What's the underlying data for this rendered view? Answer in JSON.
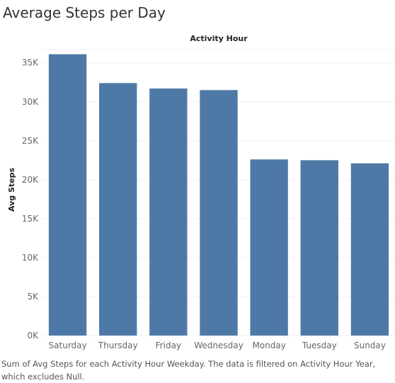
{
  "title": "Average Steps per Day",
  "footer": "Sum of Avg Steps for each Activity Hour Weekday.  The data is filtered on Activity Hour Year, which excludes Null.",
  "chart_data": {
    "type": "bar",
    "column_header": "Activity Hour",
    "ylabel": "Avg Steps",
    "categories": [
      "Saturday",
      "Thursday",
      "Friday",
      "Wednesday",
      "Monday",
      "Tuesday",
      "Sunday"
    ],
    "values": [
      36100,
      32400,
      31700,
      31500,
      22600,
      22500,
      22100
    ],
    "ylim": [
      0,
      36700
    ],
    "yticks": [
      0,
      5000,
      10000,
      15000,
      20000,
      25000,
      30000,
      35000
    ],
    "ytick_labels": [
      "0K",
      "5K",
      "10K",
      "15K",
      "20K",
      "25K",
      "30K",
      "35K"
    ],
    "bar_color": "#4e79a7",
    "grid": true
  }
}
